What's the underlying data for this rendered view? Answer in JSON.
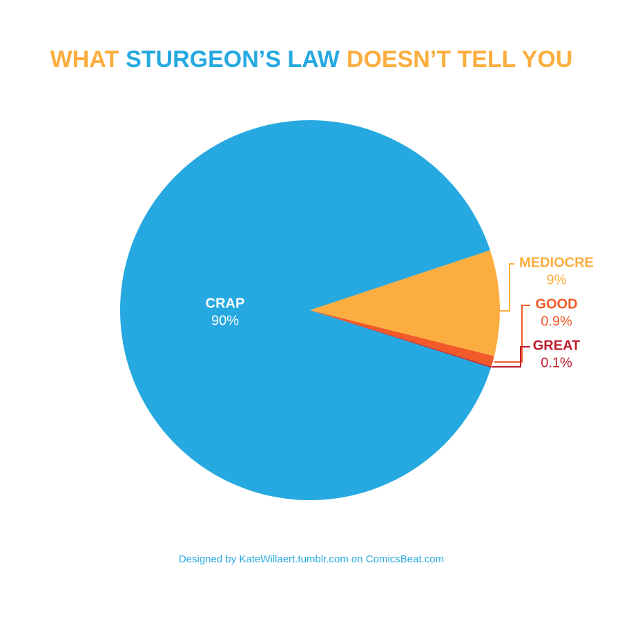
{
  "chart_data": {
    "type": "pie",
    "title": [
      "WHAT",
      "STURGEON’S LAW",
      "DOESN’T TELL YOU"
    ],
    "title_colors": [
      "#fbae3f",
      "#25a9e0",
      "#fbae3f"
    ],
    "categories": [
      "CRAP",
      "MEDIOCRE",
      "GOOD",
      "GREAT"
    ],
    "values": [
      90,
      9,
      0.9,
      0.1
    ],
    "value_labels": [
      "90%",
      "9%",
      "0.9%",
      "0.1%"
    ],
    "colors": [
      "#25a9e0",
      "#fbae3f",
      "#f15a29",
      "#be1e2d"
    ],
    "label_colors": [
      "#ffffff",
      "#fbae3f",
      "#f15a29",
      "#be1e2d"
    ],
    "credit": "Designed by KateWillaert.tumblr.com on ComicsBeat.com",
    "credit_color": "#25a9e0"
  }
}
